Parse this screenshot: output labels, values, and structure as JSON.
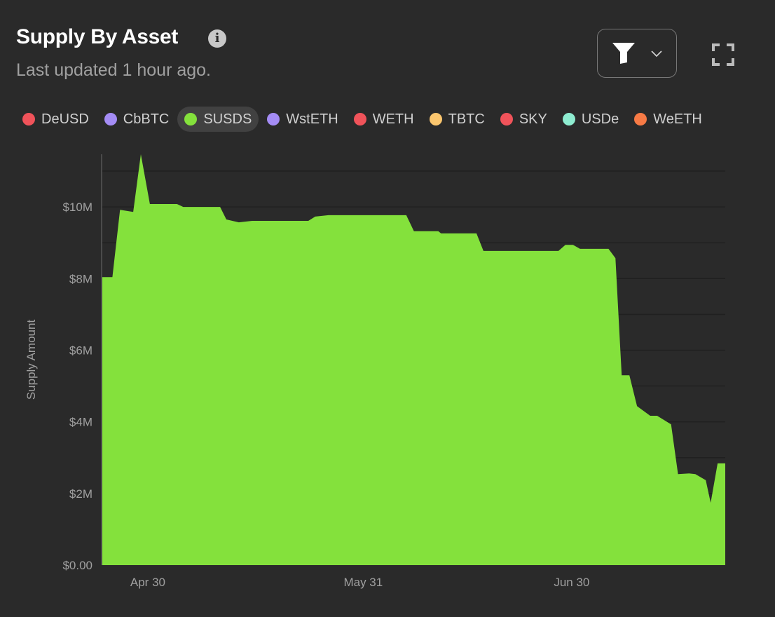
{
  "header": {
    "title": "Supply By Asset",
    "info_icon": "i",
    "subtitle": "Last updated 1 hour ago."
  },
  "legend": [
    {
      "label": "DeUSD",
      "color": "#f0535a",
      "active": false
    },
    {
      "label": "CbBTC",
      "color": "#a48cf5",
      "active": false
    },
    {
      "label": "SUSDS",
      "color": "#84e13c",
      "active": true
    },
    {
      "label": "WstETH",
      "color": "#a48cf5",
      "active": false
    },
    {
      "label": "WETH",
      "color": "#f0535a",
      "active": false
    },
    {
      "label": "TBTC",
      "color": "#fbc66e",
      "active": false
    },
    {
      "label": "SKY",
      "color": "#f0535a",
      "active": false
    },
    {
      "label": "USDe",
      "color": "#8eecd0",
      "active": false
    },
    {
      "label": "WeETH",
      "color": "#f77a45",
      "active": false
    }
  ],
  "chart_data": {
    "type": "area",
    "title": "Supply By Asset",
    "xlabel": "",
    "ylabel": "Supply Amount",
    "x_unit": "days since Apr 30",
    "xlim": [
      -6.65,
      83.1
    ],
    "ylim": [
      0,
      11.47
    ],
    "x_ticks": [
      {
        "value": 0,
        "label": "Apr 30"
      },
      {
        "value": 31,
        "label": "May 31"
      },
      {
        "value": 61,
        "label": "Jun 30"
      }
    ],
    "y_ticks": [
      {
        "value": 0,
        "label": "$0.00"
      },
      {
        "value": 2,
        "label": "$2M"
      },
      {
        "value": 4,
        "label": "$4M"
      },
      {
        "value": 6,
        "label": "$6M"
      },
      {
        "value": 8,
        "label": "$8M"
      },
      {
        "value": 10,
        "label": "$10M"
      }
    ],
    "grid": true,
    "series": [
      {
        "name": "SUSDS",
        "color": "#84e13c",
        "unit": "$M",
        "x": [
          -6.65,
          -5.1,
          -4.0,
          -2.1,
          -1.0,
          0.3,
          4.2,
          5.1,
          10.4,
          11.3,
          13.1,
          15.0,
          16.1,
          23.1,
          24.1,
          26.0,
          37.2,
          38.3,
          41.8,
          42.2,
          47.3,
          48.3,
          59.1,
          60.1,
          61.2,
          62.2,
          66.3,
          67.3,
          68.2,
          69.3,
          70.4,
          72.3,
          73.3,
          75.3,
          76.3,
          77.9,
          78.8,
          80.3,
          81.0,
          82.0,
          83.1
        ],
        "y": [
          8.04,
          8.04,
          9.92,
          9.86,
          11.47,
          10.08,
          10.08,
          10.0,
          10.0,
          9.65,
          9.57,
          9.61,
          9.61,
          9.61,
          9.73,
          9.77,
          9.77,
          9.32,
          9.32,
          9.26,
          9.26,
          8.77,
          8.77,
          8.94,
          8.94,
          8.83,
          8.83,
          8.57,
          5.3,
          5.3,
          4.44,
          4.17,
          4.17,
          3.93,
          2.54,
          2.56,
          2.54,
          2.37,
          1.74,
          2.84,
          2.84
        ]
      }
    ]
  }
}
